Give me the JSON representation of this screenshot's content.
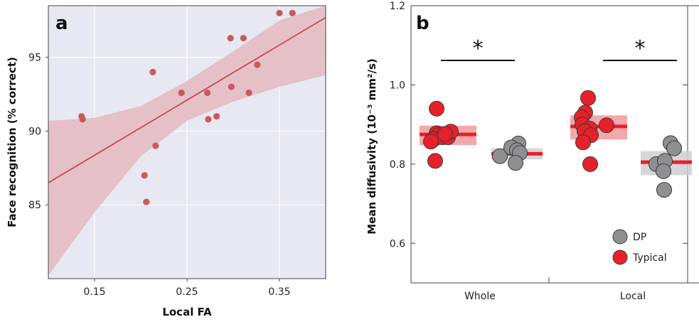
{
  "chart_data": [
    {
      "panel": "a",
      "type": "scatter",
      "xlabel": "Local FA",
      "ylabel": "Face recognition (% correct)",
      "xlim": [
        0.1,
        0.4
      ],
      "ylim": [
        80,
        98.5
      ],
      "xticks": [
        "0.15",
        "0.25",
        "0.35"
      ],
      "xtick_values": [
        0.15,
        0.25,
        0.35
      ],
      "yticks": [
        "85",
        "90",
        "95"
      ],
      "ytick_values": [
        85,
        90,
        95
      ],
      "grid": true,
      "background": "#e8e8f2",
      "point_color": "#c85a5e",
      "line_color": "#c94a50",
      "band_color": "#e4b8c0",
      "points": [
        {
          "x": 0.136,
          "y": 91.0
        },
        {
          "x": 0.137,
          "y": 90.8
        },
        {
          "x": 0.204,
          "y": 87.0
        },
        {
          "x": 0.206,
          "y": 85.2
        },
        {
          "x": 0.213,
          "y": 94.0
        },
        {
          "x": 0.216,
          "y": 89.0
        },
        {
          "x": 0.244,
          "y": 92.6
        },
        {
          "x": 0.272,
          "y": 92.6
        },
        {
          "x": 0.273,
          "y": 90.8
        },
        {
          "x": 0.282,
          "y": 91.0
        },
        {
          "x": 0.297,
          "y": 96.3
        },
        {
          "x": 0.298,
          "y": 93.0
        },
        {
          "x": 0.311,
          "y": 96.3
        },
        {
          "x": 0.317,
          "y": 92.6
        },
        {
          "x": 0.326,
          "y": 94.5
        },
        {
          "x": 0.35,
          "y": 98.0
        },
        {
          "x": 0.364,
          "y": 98.0
        }
      ],
      "fit_line": [
        {
          "x": 0.1,
          "y": 86.5
        },
        {
          "x": 0.4,
          "y": 97.7
        }
      ],
      "confidence_band": {
        "x": [
          0.1,
          0.15,
          0.2,
          0.25,
          0.3,
          0.35,
          0.4
        ],
        "upper": [
          90.7,
          90.9,
          91.7,
          93.4,
          95.4,
          97.5,
          100.0
        ],
        "lower": [
          80.2,
          84.5,
          88.3,
          90.7,
          92.0,
          93.0,
          93.8
        ]
      }
    },
    {
      "panel": "b",
      "type": "scatter",
      "ylabel": "Mean diffusivity (10⁻³ mm²/s)",
      "ylim": [
        0.5,
        1.2
      ],
      "yticks": [
        "0.6",
        "0.8",
        "1.0",
        "1.2"
      ],
      "ytick_values": [
        0.6,
        0.8,
        1.0,
        1.2
      ],
      "categories": [
        "Whole",
        "Local"
      ],
      "legend": {
        "position": "bottom-right",
        "entries": [
          "DP",
          "Typical"
        ]
      },
      "series": [
        {
          "name": "Typical",
          "color": "#e8202a",
          "mean_color": "#e8202a",
          "band_color": "#f09a9c",
          "groups": [
            {
              "category": "Whole",
              "mean": 0.875,
              "band": [
                0.848,
                0.897
              ],
              "points": [
                {
                  "dx": -16,
                  "y": 0.94
                },
                {
                  "dx": -16,
                  "y": 0.878
                },
                {
                  "dx": -13,
                  "y": 0.873
                },
                {
                  "dx": -20,
                  "y": 0.863
                },
                {
                  "dx": -8,
                  "y": 0.868
                },
                {
                  "dx": 0,
                  "y": 0.868
                },
                {
                  "dx": 4,
                  "y": 0.882
                },
                {
                  "dx": -24,
                  "y": 0.857
                },
                {
                  "dx": -4,
                  "y": 0.876
                },
                {
                  "dx": -18,
                  "y": 0.808
                }
              ]
            },
            {
              "category": "Local",
              "mean": 0.895,
              "band": [
                0.862,
                0.923
              ],
              "points": [
                {
                  "dx": -15,
                  "y": 0.967
                },
                {
                  "dx": -19,
                  "y": 0.93
                },
                {
                  "dx": -24,
                  "y": 0.918
                },
                {
                  "dx": -23,
                  "y": 0.9
                },
                {
                  "dx": -13,
                  "y": 0.89
                },
                {
                  "dx": -20,
                  "y": 0.883
                },
                {
                  "dx": 11,
                  "y": 0.898
                },
                {
                  "dx": -11,
                  "y": 0.873
                },
                {
                  "dx": -22,
                  "y": 0.855
                },
                {
                  "dx": -12,
                  "y": 0.8
                }
              ]
            }
          ]
        },
        {
          "name": "DP",
          "color": "#8f8f91",
          "mean_color": "#e8202a",
          "band_color": "#cfcfd1",
          "groups": [
            {
              "category": "Whole",
              "mean": 0.826,
              "band": [
                0.812,
                0.84
              ],
              "points": [
                {
                  "dx": -24,
                  "y": 0.82
                },
                {
                  "dx": 2,
                  "y": 0.852
                },
                {
                  "dx": -8,
                  "y": 0.842
                },
                {
                  "dx": 0,
                  "y": 0.835
                },
                {
                  "dx": 4,
                  "y": 0.828
                },
                {
                  "dx": -2,
                  "y": 0.803
                }
              ]
            },
            {
              "category": "Local",
              "mean": 0.805,
              "band": [
                0.772,
                0.833
              ],
              "points": [
                {
                  "dx": 6,
                  "y": 0.853
                },
                {
                  "dx": 11,
                  "y": 0.84
                },
                {
                  "dx": -14,
                  "y": 0.8
                },
                {
                  "dx": -2,
                  "y": 0.808
                },
                {
                  "dx": -4,
                  "y": 0.782
                },
                {
                  "dx": -3,
                  "y": 0.735
                }
              ]
            }
          ]
        }
      ],
      "annotations": [
        {
          "text": "*",
          "category": "Whole"
        },
        {
          "text": "*",
          "category": "Local"
        }
      ]
    }
  ],
  "panels": {
    "a": "a",
    "b": "b"
  }
}
